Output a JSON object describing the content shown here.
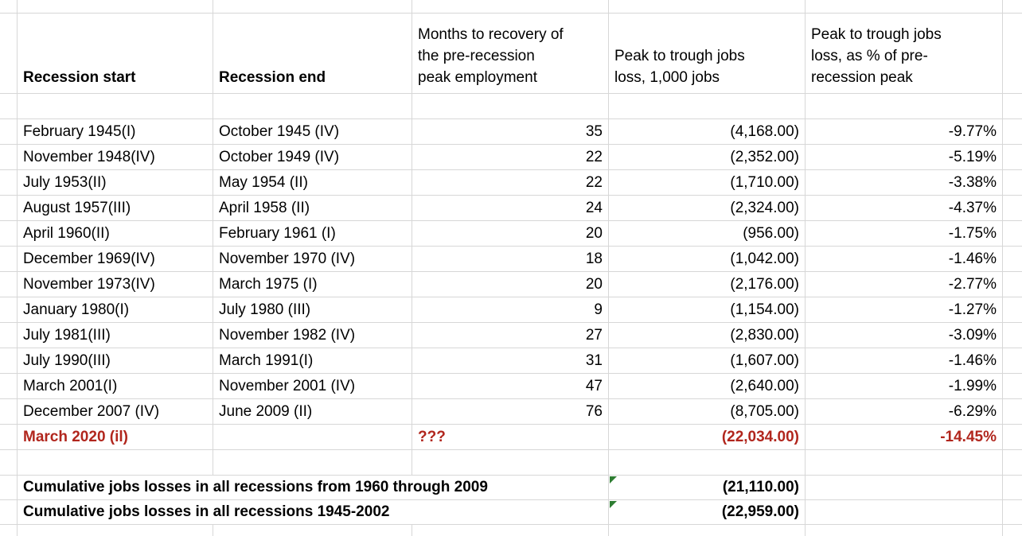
{
  "table": {
    "headers": {
      "start": "Recession start",
      "end": "Recession end",
      "months": "Months to recovery of\nthe pre-recession\npeak employment",
      "loss": "Peak to trough jobs\nloss, 1,000 jobs",
      "pct": "Peak to trough jobs\nloss, as % of pre-\nrecession peak"
    },
    "rows": [
      {
        "start": "February 1945(I)",
        "end": "October 1945 (IV)",
        "months": "35",
        "loss": "(4,168.00)",
        "pct": "-9.77%"
      },
      {
        "start": "November 1948(IV)",
        "end": "October 1949 (IV)",
        "months": "22",
        "loss": "(2,352.00)",
        "pct": "-5.19%"
      },
      {
        "start": "July 1953(II)",
        "end": "May 1954 (II)",
        "months": "22",
        "loss": "(1,710.00)",
        "pct": "-3.38%"
      },
      {
        "start": "August 1957(III)",
        "end": "April 1958 (II)",
        "months": "24",
        "loss": "(2,324.00)",
        "pct": "-4.37%"
      },
      {
        "start": "April 1960(II)",
        "end": "February 1961 (I)",
        "months": "20",
        "loss": "(956.00)",
        "pct": "-1.75%"
      },
      {
        "start": "December 1969(IV)",
        "end": "November 1970 (IV)",
        "months": "18",
        "loss": "(1,042.00)",
        "pct": "-1.46%"
      },
      {
        "start": "November 1973(IV)",
        "end": "March 1975 (I)",
        "months": "20",
        "loss": "(2,176.00)",
        "pct": "-2.77%"
      },
      {
        "start": "January 1980(I)",
        "end": "July 1980 (III)",
        "months": "9",
        "loss": "(1,154.00)",
        "pct": "-1.27%"
      },
      {
        "start": "July 1981(III)",
        "end": "November 1982 (IV)",
        "months": "27",
        "loss": "(2,830.00)",
        "pct": "-3.09%"
      },
      {
        "start": "July 1990(III)",
        "end": "March 1991(I)",
        "months": "31",
        "loss": "(1,607.00)",
        "pct": "-1.46%"
      },
      {
        "start": "March 2001(I)",
        "end": "November 2001 (IV)",
        "months": "47",
        "loss": "(2,640.00)",
        "pct": "-1.99%"
      },
      {
        "start": "December 2007 (IV)",
        "end": "June 2009 (II)",
        "months": "76",
        "loss": "(8,705.00)",
        "pct": "-6.29%"
      },
      {
        "start": "March 2020 (il)",
        "end": "",
        "months": "???",
        "loss": "(22,034.00)",
        "pct": "-14.45%",
        "highlight": true
      }
    ],
    "footer": [
      {
        "label": "Cumulative jobs losses in all recessions from 1960 through 2009",
        "value": "(21,110.00)"
      },
      {
        "label": "Cumulative jobs losses in all recessions 1945-2002",
        "value": "(22,959.00)"
      }
    ]
  },
  "colors": {
    "highlight_text": "#b1261d",
    "note_marker_green": "#2e7d32",
    "gridline": "#d7d7d7"
  }
}
